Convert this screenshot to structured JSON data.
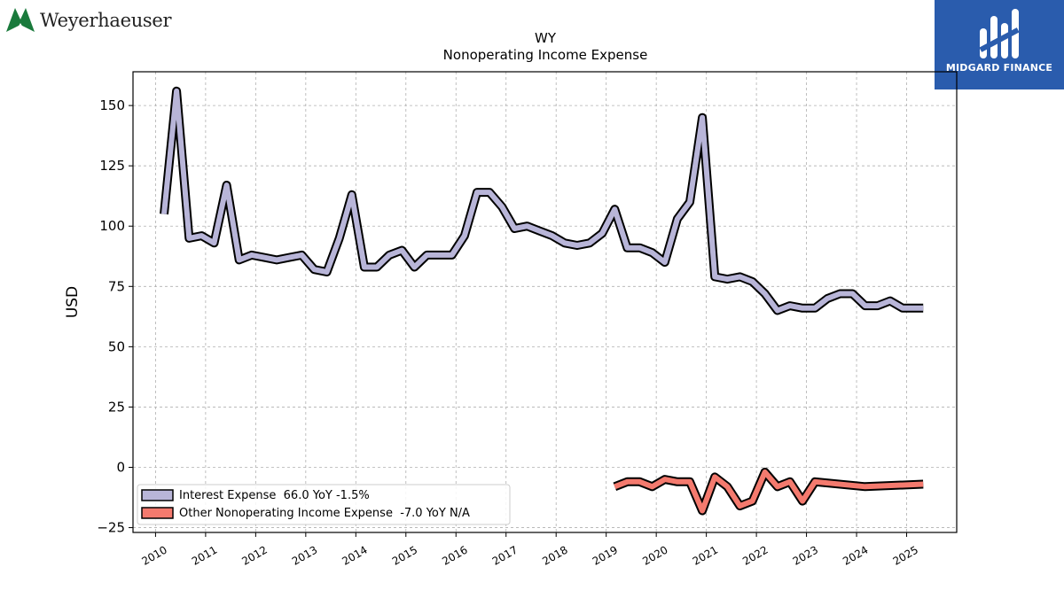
{
  "brand": {
    "name": "Weyerhaeuser",
    "logo_icon": "weyerhaeuser-tree-icon"
  },
  "badge": {
    "name": "MIDGARD FINANCE",
    "logo_icon": "midgard-logo-icon",
    "color": "#2a5cad"
  },
  "chart_data": {
    "type": "line",
    "title": "WY",
    "subtitle": "Nonoperating Income Expense",
    "ylabel": "USD",
    "xlabel": "",
    "xlim": [
      2009.55,
      2026.0
    ],
    "ylim": [
      -27,
      164
    ],
    "yticks": [
      -25,
      0,
      25,
      50,
      75,
      100,
      125,
      150
    ],
    "xticks": [
      2010,
      2011,
      2012,
      2013,
      2014,
      2015,
      2016,
      2017,
      2018,
      2019,
      2020,
      2021,
      2022,
      2023,
      2024,
      2025
    ],
    "grid": true,
    "legend_position": "lower-left",
    "series": [
      {
        "name": "Interest Expense  66.0 YoY -1.5%",
        "color": "#b8b5d8",
        "x": [
          2010.17,
          2010.42,
          2010.67,
          2010.92,
          2011.17,
          2011.42,
          2011.67,
          2011.92,
          2012.17,
          2012.42,
          2012.67,
          2012.92,
          2013.17,
          2013.42,
          2013.67,
          2013.92,
          2014.17,
          2014.42,
          2014.67,
          2014.92,
          2015.17,
          2015.42,
          2015.67,
          2015.92,
          2016.17,
          2016.42,
          2016.67,
          2016.92,
          2017.17,
          2017.42,
          2017.67,
          2017.92,
          2018.17,
          2018.42,
          2018.67,
          2018.92,
          2019.17,
          2019.42,
          2019.67,
          2019.92,
          2020.17,
          2020.42,
          2020.67,
          2020.92,
          2021.17,
          2021.42,
          2021.67,
          2021.92,
          2022.17,
          2022.42,
          2022.67,
          2022.92,
          2023.17,
          2023.42,
          2023.67,
          2023.92,
          2024.17,
          2024.42,
          2024.67,
          2024.92,
          2025.17,
          2025.33
        ],
        "y": [
          105,
          156,
          95,
          96,
          93,
          117,
          86,
          88,
          87,
          86,
          87,
          88,
          82,
          81,
          95,
          113,
          83,
          83,
          88,
          90,
          83,
          88,
          88,
          88,
          96,
          114,
          114,
          108,
          99,
          100,
          98,
          96,
          93,
          92,
          93,
          97,
          107,
          91,
          91,
          89,
          85,
          103,
          110,
          145,
          79,
          78,
          79,
          77,
          72,
          65,
          67,
          66,
          66,
          70,
          72,
          72,
          67,
          67,
          69,
          66,
          66,
          66
        ]
      },
      {
        "name": "Other Nonoperating Income Expense  -7.0 YoY N/A",
        "color": "#f47a6e",
        "x": [
          2019.17,
          2019.42,
          2019.67,
          2019.92,
          2020.17,
          2020.42,
          2020.67,
          2020.92,
          2021.17,
          2021.42,
          2021.67,
          2021.92,
          2022.17,
          2022.42,
          2022.67,
          2022.92,
          2023.17,
          2024.17,
          2025.33
        ],
        "y": [
          -8,
          -6,
          -6,
          -8,
          -5,
          -6,
          -6,
          -18,
          -4,
          -8,
          -16,
          -14,
          -2,
          -8,
          -6,
          -14,
          -6,
          -8,
          -7
        ]
      }
    ]
  }
}
